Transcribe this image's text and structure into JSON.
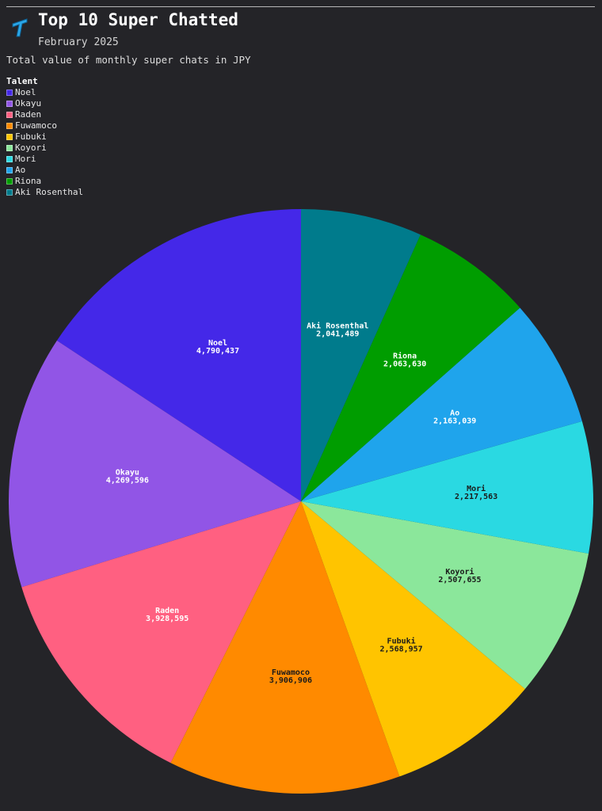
{
  "header": {
    "title": "Top 10 Super Chatted",
    "subtitle": "February 2025",
    "description": "Total value of monthly super chats in JPY",
    "logo_icon": "hololive-logo-icon"
  },
  "legend": {
    "title": "Talent",
    "placement": "top-left"
  },
  "chart_data": {
    "type": "pie",
    "title": "Top 10 Super Chatted",
    "subtitle": "February 2025",
    "description": "Total value of monthly super chats in JPY",
    "legend_title": "Talent",
    "slices": [
      {
        "name": "Noel",
        "value": 4790437,
        "label": "4,790,437",
        "color": "#4428e8",
        "text_color": "#ffffff"
      },
      {
        "name": "Okayu",
        "value": 4269596,
        "label": "4,269,596",
        "color": "#9155e6",
        "text_color": "#ffffff"
      },
      {
        "name": "Raden",
        "value": 3928595,
        "label": "3,928,595",
        "color": "#ff6081",
        "text_color": "#ffffff"
      },
      {
        "name": "Fuwamoco",
        "value": 3906906,
        "label": "3,906,906",
        "color": "#ff8a00",
        "text_color": "#1a1a1a"
      },
      {
        "name": "Fubuki",
        "value": 2568957,
        "label": "2,568,957",
        "color": "#ffc400",
        "text_color": "#1a1a1a"
      },
      {
        "name": "Koyori",
        "value": 2507655,
        "label": "2,507,655",
        "color": "#8be79b",
        "text_color": "#1a1a1a"
      },
      {
        "name": "Mori",
        "value": 2217563,
        "label": "2,217,563",
        "color": "#2ad9e2",
        "text_color": "#1a1a1a"
      },
      {
        "name": "Ao",
        "value": 2163039,
        "label": "2,163,039",
        "color": "#1fa4ec",
        "text_color": "#ffffff"
      },
      {
        "name": "Riona",
        "value": 2063630,
        "label": "2,063,630",
        "color": "#009d00",
        "text_color": "#ffffff"
      },
      {
        "name": "Aki Rosenthal",
        "value": 2041489,
        "label": "2,041,489",
        "color": "#007b8c",
        "text_color": "#ffffff"
      }
    ]
  }
}
